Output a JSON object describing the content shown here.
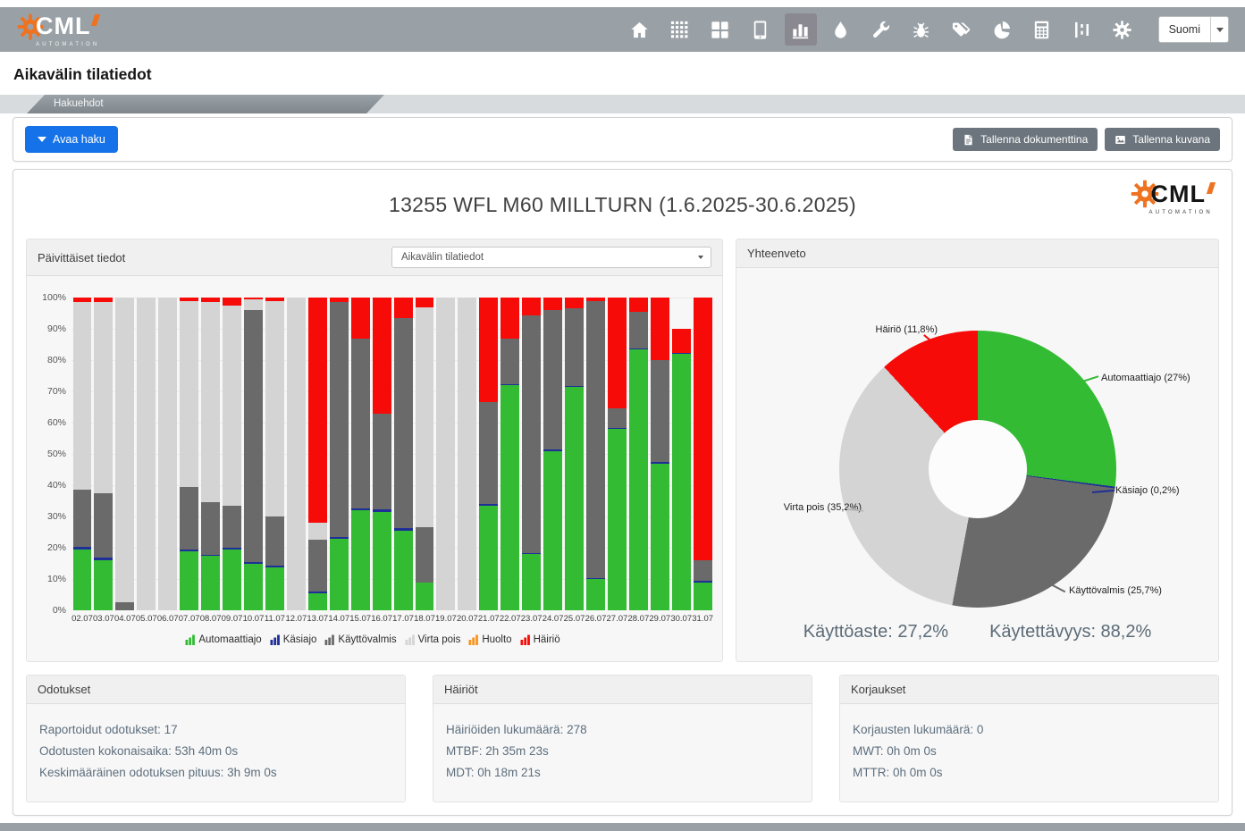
{
  "navbar": {
    "language": "Suomi",
    "icons": [
      "home",
      "grid",
      "tiles",
      "tablet",
      "bar-chart",
      "drop",
      "wrench",
      "bug",
      "tags",
      "pie-chart",
      "calculator",
      "hierarchy",
      "gear"
    ],
    "active_icon": "bar-chart"
  },
  "logo": {
    "text": "CML",
    "subtext": "AUTOMATION"
  },
  "page": {
    "title": "Aikavälin tilatiedot",
    "tab": "Hakuehdot"
  },
  "toolbar": {
    "open_search": "Avaa haku",
    "save_document": "Tallenna dokumenttina",
    "save_image": "Tallenna kuvana"
  },
  "report": {
    "title": "13255 WFL M60 MILLTURN (1.6.2025-30.6.2025)"
  },
  "daily_panel": {
    "title": "Päivittäiset tiedot",
    "dropdown_value": "Aikavälin tilatiedot"
  },
  "summary_panel": {
    "title": "Yhteenveto",
    "utilization": "Käyttöaste: 27,2%",
    "availability": "Käytettävyys: 88,2%"
  },
  "stats_panels": [
    {
      "title": "Odotukset",
      "lines": [
        "Raportoidut odotukset: 17",
        "Odotusten kokonaisaika: 53h 40m 0s",
        "Keskimääräinen odotuksen pituus: 3h 9m 0s"
      ]
    },
    {
      "title": "Häiriöt",
      "lines": [
        "Häiriöiden lukumäärä: 278",
        "MTBF: 2h 35m 23s",
        "MDT: 0h 18m 21s"
      ]
    },
    {
      "title": "Korjaukset",
      "lines": [
        "Korjausten lukumäärä: 0",
        "MWT: 0h 0m 0s",
        "MTTR: 0h 0m 0s"
      ]
    }
  ],
  "chart_data": [
    {
      "type": "bar",
      "stacked": true,
      "title": "Päivittäiset tiedot",
      "ylim": [
        0,
        100
      ],
      "yticks": [
        "0%",
        "10%",
        "20%",
        "30%",
        "40%",
        "50%",
        "60%",
        "70%",
        "80%",
        "90%",
        "100%"
      ],
      "grid": true,
      "legend_position": "bottom",
      "categories": [
        "02.07",
        "03.07",
        "04.07",
        "05.07",
        "06.07",
        "07.07",
        "08.07",
        "09.07",
        "10.07",
        "11.07",
        "12.07",
        "13.07",
        "14.07",
        "15.07",
        "16.07",
        "17.07",
        "18.07",
        "19.07",
        "20.07",
        "21.07",
        "22.07",
        "23.07",
        "24.07",
        "25.07",
        "26.07",
        "27.07",
        "28.07",
        "29.07",
        "30.07",
        "31.07"
      ],
      "series": [
        {
          "name": "Automaattiajo",
          "color": "#33bb33",
          "values": [
            19.5,
            16,
            0,
            0,
            0,
            18.8,
            17.5,
            19.5,
            15,
            13.8,
            0,
            5.5,
            23,
            32,
            31.5,
            25.5,
            9,
            0,
            0,
            33.5,
            72,
            18,
            51,
            71.5,
            10,
            58,
            83.5,
            47,
            82,
            9
          ]
        },
        {
          "name": "Käsiajo",
          "color": "#1e2f97",
          "values": [
            0.7,
            0.8,
            0,
            0,
            0,
            0.5,
            0.3,
            0.5,
            0.4,
            0.4,
            0,
            0.5,
            0.5,
            0.7,
            0.8,
            0.7,
            0,
            0,
            0,
            0.5,
            0.3,
            0.3,
            0.3,
            0.3,
            0.3,
            0.3,
            0.3,
            0.3,
            0.3,
            0.3
          ]
        },
        {
          "name": "Käyttövalmis",
          "color": "#6a6a6a",
          "values": [
            18.3,
            20.7,
            2.5,
            0,
            0,
            20.2,
            16.7,
            13.5,
            80.6,
            15.8,
            0,
            16.5,
            75,
            54.3,
            30.7,
            67.3,
            17.5,
            0,
            0,
            32.5,
            14.7,
            76,
            44.7,
            24.7,
            88.7,
            6.2,
            11.7,
            32.7,
            0,
            6.7
          ]
        },
        {
          "name": "Virta pois",
          "color": "#d4d4d4",
          "values": [
            60,
            61,
            97.5,
            100,
            100,
            59.5,
            64,
            64,
            3.5,
            69,
            100,
            5.5,
            0,
            0,
            0,
            0,
            70.5,
            100,
            100,
            0,
            0,
            0,
            0,
            0,
            0,
            0,
            0,
            0,
            0,
            0
          ]
        },
        {
          "name": "Huolto",
          "color": "#f7941e",
          "values": [
            0,
            0,
            0,
            0,
            0,
            0,
            0,
            0,
            0,
            0,
            0,
            0,
            0,
            0,
            0,
            0,
            0,
            0,
            0,
            0,
            0,
            0,
            0,
            0,
            0,
            0,
            0,
            0,
            0,
            0
          ]
        },
        {
          "name": "Häiriö",
          "color": "#f70b08",
          "values": [
            1.5,
            1.5,
            0,
            0,
            0,
            1,
            1.5,
            2.5,
            0.5,
            1,
            0,
            72,
            1.5,
            13,
            37,
            6.5,
            3,
            0,
            0,
            33.5,
            13,
            5.7,
            4,
            3.5,
            1,
            35.5,
            4.5,
            20,
            7.7,
            84
          ]
        }
      ]
    },
    {
      "type": "pie",
      "subtype": "donut",
      "title": "Yhteenveto",
      "start_angle": "top",
      "direction": "clockwise",
      "slices": [
        {
          "label": "Automaattiajo",
          "value": 27,
          "display": "Automaattiajo (27%)",
          "color": "#33bb33"
        },
        {
          "label": "Käsiajo",
          "value": 0.2,
          "display": "Käsiajo (0,2%)",
          "color": "#1e2f97"
        },
        {
          "label": "Käyttövalmis",
          "value": 25.7,
          "display": "Käyttövalmis (25,7%)",
          "color": "#6a6a6a"
        },
        {
          "label": "Virta pois",
          "value": 35.2,
          "display": "Virta pois (35,2%)",
          "color": "#d4d4d4"
        },
        {
          "label": "Häiriö",
          "value": 11.8,
          "display": "Häiriö (11,8%)",
          "color": "#f70b08"
        }
      ]
    }
  ],
  "colors": {
    "navbar": "#9aa1a6",
    "accent_orange": "#ee7220",
    "primary_button": "#1672e8",
    "secondary_button": "#6c757d"
  }
}
